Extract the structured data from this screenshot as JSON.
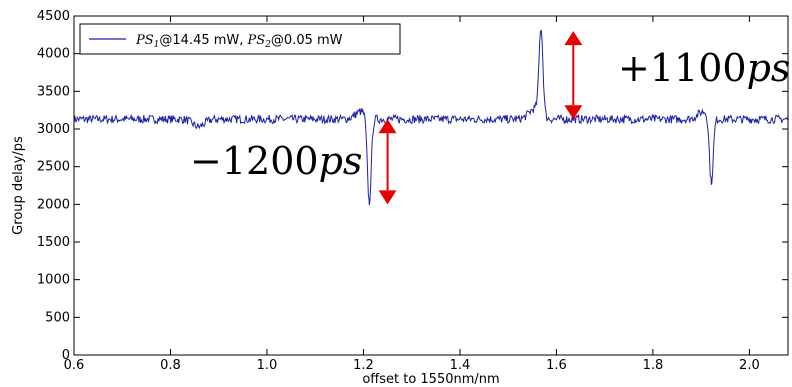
{
  "chart_data": {
    "type": "line",
    "xlabel": "offset to 1550nm/nm",
    "ylabel": "Group delay/ps",
    "xlim": [
      0.6,
      2.08
    ],
    "ylim": [
      0,
      4500
    ],
    "xticks": [
      0.6,
      0.8,
      1.0,
      1.2,
      1.4,
      1.6,
      1.8,
      2.0
    ],
    "xtick_labels": [
      "0.6",
      "0.8",
      "1.0",
      "1.2",
      "1.4",
      "1.6",
      "1.8",
      "2.0"
    ],
    "yticks": [
      0,
      500,
      1000,
      1500,
      2000,
      2500,
      3000,
      3500,
      4000,
      4500
    ],
    "ytick_labels": [
      "0",
      "500",
      "1000",
      "1500",
      "2000",
      "2500",
      "3000",
      "3500",
      "4000",
      "4500"
    ],
    "grid": false,
    "legend_position": "top-left",
    "series": [
      {
        "name_parts": {
          "ps1": "PS",
          "ps1_sub": "1",
          "mid": "@14.45 mW, ",
          "ps2": "PS",
          "ps2_sub": "2",
          "tail": "@0.05 mW"
        },
        "color": "#1f1fa8",
        "baseline": 3130,
        "noise_amplitude": 55,
        "features": [
          {
            "x": 0.858,
            "y": 3030,
            "kind": "dip"
          },
          {
            "x": 1.195,
            "y": 3230,
            "kind": "bump"
          },
          {
            "x": 1.212,
            "y": 1990,
            "kind": "spike"
          },
          {
            "x": 1.555,
            "y": 3270,
            "kind": "bump"
          },
          {
            "x": 1.568,
            "y": 4280,
            "kind": "spike"
          },
          {
            "x": 1.905,
            "y": 3230,
            "kind": "bump"
          },
          {
            "x": 1.921,
            "y": 2260,
            "kind": "spike"
          }
        ]
      }
    ],
    "annotations": [
      {
        "text_sign": "−",
        "text_num": "1200",
        "text_unit": "ps",
        "arrow_x": 1.25,
        "arrow_y_from": 3130,
        "arrow_y_to": 2000
      },
      {
        "text_sign": "+",
        "text_num": "1100",
        "text_unit": "ps",
        "arrow_x": 1.635,
        "arrow_y_from": 4300,
        "arrow_y_to": 3130
      }
    ],
    "arrow_color": "#e60000"
  }
}
